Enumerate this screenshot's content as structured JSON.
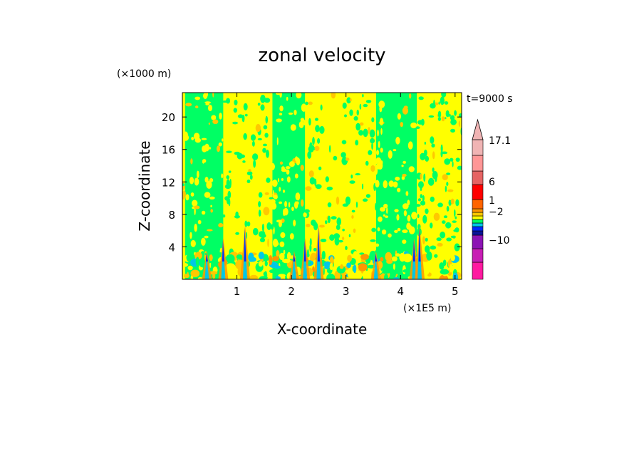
{
  "chart_data": {
    "type": "heatmap",
    "title": "zonal velocity",
    "xlabel": "X-coordinate",
    "ylabel": "Z-coordinate",
    "x_unit": "(×1E5 m)",
    "y_unit": "(×1000 m)",
    "time_label": "t=9000 s",
    "xlim": [
      0,
      5.12
    ],
    "ylim": [
      0,
      23
    ],
    "x_ticks": [
      1,
      2,
      3,
      4,
      5
    ],
    "y_ticks": [
      4,
      8,
      12,
      16,
      20
    ],
    "grid": false,
    "colorbar": {
      "position": "right",
      "labels": [
        {
          "text": "17.1",
          "value": 17.1
        },
        {
          "text": "6",
          "value": 6
        },
        {
          "text": "1",
          "value": 1
        },
        {
          "text": "−2",
          "value": -2
        },
        {
          "text": "−10",
          "value": -10
        }
      ],
      "colors": [
        "#ff1aa0",
        "#c81eb4",
        "#8c14b4",
        "#0a1496",
        "#0028ff",
        "#00c8e6",
        "#00ff64",
        "#ffff00",
        "#ffc800",
        "#ff9600",
        "#ff6400",
        "#ff0000",
        "#e66464",
        "#ff9696",
        "#f0b4b4"
      ]
    },
    "dominant_fields": [
      {
        "name": "green band",
        "color": "#00ff64",
        "x_ranges": [
          [
            0.05,
            0.75
          ],
          [
            1.65,
            2.25
          ],
          [
            3.55,
            4.3
          ]
        ]
      },
      {
        "name": "yellow band",
        "color": "#ffff00",
        "x_ranges": [
          [
            0.75,
            1.65
          ],
          [
            2.25,
            3.55
          ],
          [
            4.3,
            5.12
          ]
        ]
      }
    ],
    "jets": [
      0.45,
      0.75,
      1.15,
      2.05,
      2.25,
      2.5,
      3.55,
      4.25,
      4.35
    ]
  }
}
